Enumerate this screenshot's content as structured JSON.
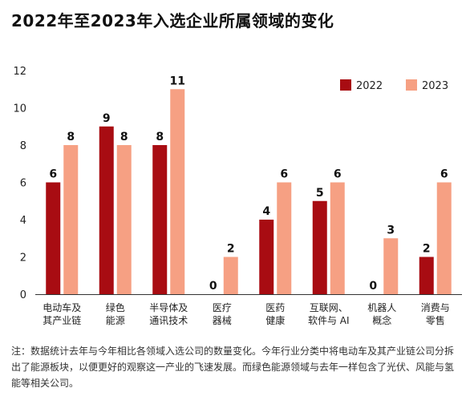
{
  "title": "2022年至2023年入选企业所属领域的变化",
  "note": "注：数据统计去年与今年相比各领域入选公司的数量变化。今年行业分类中将电动车及其产业链公司分拆出了能源板块，以便更好的观察这一产业的飞速发展。而绿色能源领域与去年一样包含了光伏、风能与氢能等相关公司。",
  "chart_data": {
    "type": "bar",
    "title": "2022年至2023年入选企业所属领域的变化",
    "categories": [
      [
        "电动车及",
        "其产业链"
      ],
      [
        "绿色",
        "能源"
      ],
      [
        "半导体及",
        "通讯技术"
      ],
      [
        "医疗",
        "器械"
      ],
      [
        "医药",
        "健康"
      ],
      [
        "互联网、",
        "软件与 AI"
      ],
      [
        "机器人",
        "概念"
      ],
      [
        "消费与",
        "零售"
      ]
    ],
    "series": [
      {
        "name": "2022",
        "color": "#a80c12",
        "values": [
          6,
          9,
          8,
          0,
          4,
          5,
          0,
          2
        ]
      },
      {
        "name": "2023",
        "color": "#f6a083",
        "values": [
          8,
          8,
          11,
          2,
          6,
          6,
          3,
          6
        ]
      }
    ],
    "ylim": [
      0,
      12
    ],
    "yticks": [
      0,
      2,
      4,
      6,
      8,
      10,
      12
    ],
    "grid": false,
    "legend": "top-right",
    "data_labels": true
  }
}
